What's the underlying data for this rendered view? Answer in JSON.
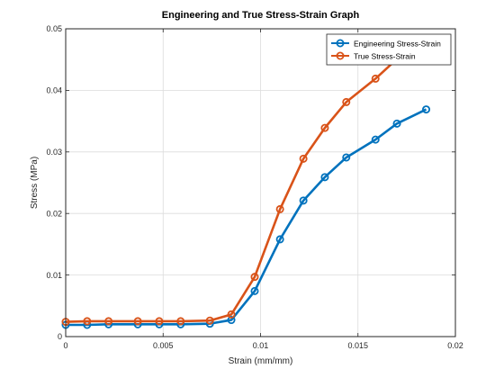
{
  "chart_data": {
    "type": "line",
    "title": "Engineering and True Stress-Strain Graph",
    "xlabel": "Strain (mm/mm)",
    "ylabel": "Stress (MPa)",
    "xlim": [
      0,
      0.02
    ],
    "ylim": [
      0,
      0.05
    ],
    "x_ticks": [
      "0",
      "0.005",
      "0.01",
      "0.015",
      "0.02"
    ],
    "y_ticks": [
      "0",
      "0.01",
      "0.02",
      "0.03",
      "0.04",
      "0.05"
    ],
    "grid": true,
    "legend_position": "top-right",
    "series": [
      {
        "name": "Engineering Stress-Strain",
        "color": "#0072BD",
        "marker": "circle",
        "x": [
          0,
          0.0011,
          0.0022,
          0.0037,
          0.0048,
          0.0059,
          0.0074,
          0.0085,
          0.0097,
          0.011,
          0.0122,
          0.0133,
          0.0144,
          0.0159,
          0.017,
          0.0185
        ],
        "y": [
          0.0019,
          0.0019,
          0.002,
          0.002,
          0.002,
          0.002,
          0.0021,
          0.0027,
          0.0074,
          0.0158,
          0.0221,
          0.0259,
          0.0291,
          0.032,
          0.0346,
          0.0369
        ]
      },
      {
        "name": "True Stress-Strain",
        "color": "#D95319",
        "marker": "circle",
        "x": [
          0,
          0.0011,
          0.0022,
          0.0037,
          0.0048,
          0.0059,
          0.0074,
          0.0085,
          0.0097,
          0.011,
          0.0122,
          0.0133,
          0.0144,
          0.0159,
          0.017,
          0.0185
        ],
        "y": [
          0.0024,
          0.0025,
          0.0025,
          0.0025,
          0.0025,
          0.0025,
          0.0026,
          0.0036,
          0.0097,
          0.0207,
          0.0289,
          0.0339,
          0.0381,
          0.0419,
          0.0451,
          0.0483
        ]
      }
    ]
  }
}
